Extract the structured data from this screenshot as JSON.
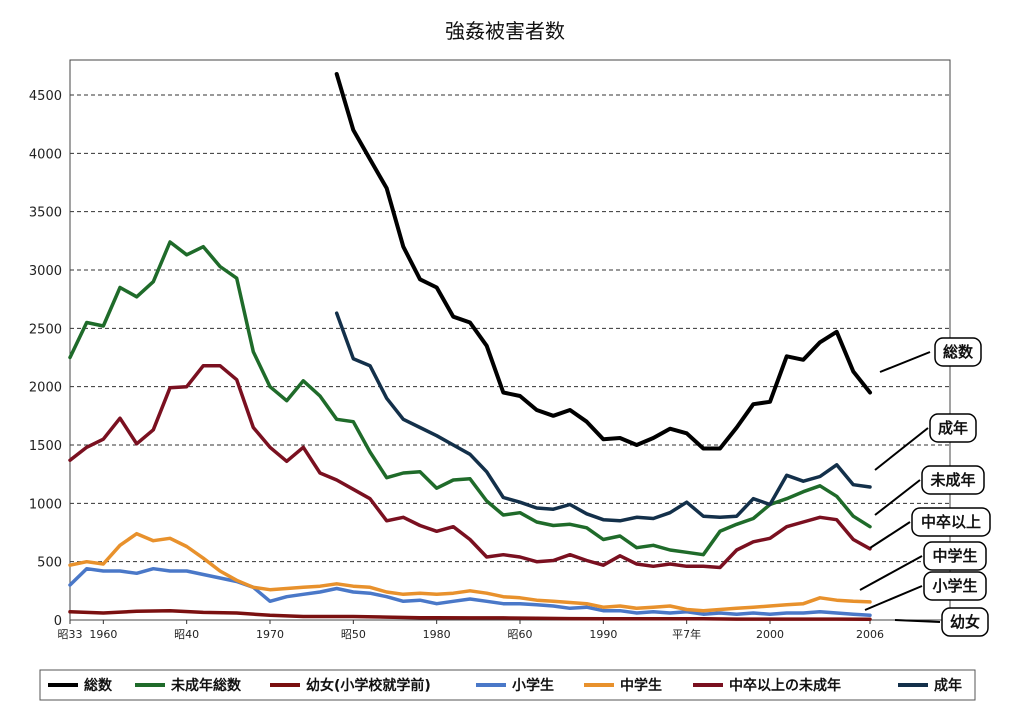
{
  "chart_data": {
    "type": "line",
    "title": "強姦被害者数",
    "xlabel": "",
    "ylabel": "",
    "xlim": [
      1958,
      2006
    ],
    "ylim": [
      0,
      4800
    ],
    "y_ticks": [
      0,
      500,
      1000,
      1500,
      2000,
      2500,
      3000,
      3500,
      4000,
      4500
    ],
    "y_tick_labels": [
      "0",
      "500",
      "1000",
      "1500",
      "2000",
      "2500",
      "3000",
      "3500",
      "4000",
      "4500"
    ],
    "x_ticks": [
      {
        "x": 1958,
        "label": "昭33"
      },
      {
        "x": 1960,
        "label": "1960"
      },
      {
        "x": 1965,
        "label": "昭40"
      },
      {
        "x": 1970,
        "label": "1970"
      },
      {
        "x": 1975,
        "label": "昭50"
      },
      {
        "x": 1980,
        "label": "1980"
      },
      {
        "x": 1985,
        "label": "昭60"
      },
      {
        "x": 1990,
        "label": "1990"
      },
      {
        "x": 1995,
        "label": "平7年"
      },
      {
        "x": 2000,
        "label": "2000"
      },
      {
        "x": 2006,
        "label": "2006"
      }
    ],
    "grid": "horizontal dashed",
    "legend_position": "bottom",
    "series": [
      {
        "name": "総数",
        "color": "#000000",
        "x": [
          1974,
          1975,
          1976,
          1977,
          1978,
          1979,
          1980,
          1981,
          1982,
          1983,
          1984,
          1985,
          1986,
          1987,
          1988,
          1989,
          1990,
          1991,
          1992,
          1993,
          1994,
          1995,
          1996,
          1997,
          1998,
          1999,
          2000,
          2001,
          2002,
          2003,
          2004,
          2005,
          2006
        ],
        "y": [
          4680,
          4200,
          3950,
          3700,
          3200,
          2920,
          2850,
          2600,
          2550,
          2350,
          1950,
          1920,
          1800,
          1750,
          1800,
          1700,
          1550,
          1560,
          1500,
          1560,
          1640,
          1600,
          1470,
          1470,
          1650,
          1850,
          1870,
          2260,
          2230,
          2380,
          2470,
          2130,
          1950
        ]
      },
      {
        "name": "未成年総数",
        "color": "#1f6b2a",
        "x": [
          1958,
          1959,
          1960,
          1961,
          1962,
          1963,
          1964,
          1965,
          1966,
          1967,
          1968,
          1969,
          1970,
          1971,
          1972,
          1973,
          1974,
          1975,
          1976,
          1977,
          1978,
          1979,
          1980,
          1981,
          1982,
          1983,
          1984,
          1985,
          1986,
          1987,
          1988,
          1989,
          1990,
          1991,
          1992,
          1993,
          1994,
          1995,
          1996,
          1997,
          1998,
          1999,
          2000,
          2001,
          2002,
          2003,
          2004,
          2005,
          2006
        ],
        "y": [
          2250,
          2550,
          2520,
          2850,
          2770,
          2900,
          3240,
          3130,
          3200,
          3030,
          2930,
          2300,
          2000,
          1880,
          2050,
          1920,
          1720,
          1700,
          1440,
          1220,
          1260,
          1270,
          1130,
          1200,
          1210,
          1020,
          900,
          920,
          840,
          810,
          820,
          790,
          690,
          720,
          620,
          640,
          600,
          580,
          560,
          760,
          820,
          870,
          990,
          1040,
          1100,
          1150,
          1060,
          890,
          800
        ]
      },
      {
        "name": "幼女(小学校就学前)",
        "color": "#7a1010",
        "x": [
          1958,
          1960,
          1962,
          1964,
          1966,
          1968,
          1970,
          1972,
          1975,
          1977,
          1979,
          1980,
          1982,
          1984,
          1986,
          1988,
          1990,
          1992,
          1994,
          1996,
          1998,
          2000,
          2002,
          2004,
          2006
        ],
        "y": [
          70,
          60,
          75,
          80,
          65,
          60,
          40,
          30,
          30,
          25,
          20,
          20,
          18,
          18,
          15,
          12,
          10,
          10,
          10,
          10,
          8,
          8,
          8,
          8,
          6
        ]
      },
      {
        "name": "小学生",
        "color": "#4a78c8",
        "x": [
          1958,
          1959,
          1960,
          1961,
          1962,
          1963,
          1964,
          1965,
          1966,
          1967,
          1968,
          1969,
          1970,
          1971,
          1972,
          1973,
          1974,
          1975,
          1976,
          1977,
          1978,
          1979,
          1980,
          1981,
          1982,
          1983,
          1984,
          1985,
          1986,
          1987,
          1988,
          1989,
          1990,
          1991,
          1992,
          1993,
          1994,
          1995,
          1996,
          1997,
          1998,
          1999,
          2000,
          2001,
          2002,
          2003,
          2004,
          2005,
          2006
        ],
        "y": [
          300,
          440,
          420,
          420,
          400,
          440,
          420,
          420,
          390,
          360,
          330,
          280,
          160,
          200,
          220,
          240,
          270,
          240,
          230,
          200,
          160,
          170,
          140,
          160,
          180,
          160,
          140,
          140,
          130,
          120,
          100,
          110,
          80,
          80,
          60,
          70,
          60,
          70,
          50,
          60,
          50,
          60,
          50,
          60,
          60,
          70,
          60,
          50,
          40
        ]
      },
      {
        "name": "中学生",
        "color": "#e8912c",
        "x": [
          1958,
          1959,
          1960,
          1961,
          1962,
          1963,
          1964,
          1965,
          1966,
          1967,
          1968,
          1969,
          1970,
          1971,
          1972,
          1973,
          1974,
          1975,
          1976,
          1977,
          1978,
          1979,
          1980,
          1981,
          1982,
          1983,
          1984,
          1985,
          1986,
          1987,
          1988,
          1989,
          1990,
          1991,
          1992,
          1993,
          1994,
          1995,
          1996,
          1997,
          1998,
          1999,
          2000,
          2001,
          2002,
          2003,
          2004,
          2005,
          2006
        ],
        "y": [
          470,
          500,
          480,
          640,
          740,
          680,
          700,
          630,
          530,
          420,
          340,
          280,
          260,
          270,
          280,
          290,
          310,
          290,
          280,
          240,
          220,
          230,
          220,
          230,
          250,
          230,
          200,
          190,
          170,
          160,
          150,
          140,
          110,
          120,
          100,
          110,
          120,
          90,
          80,
          90,
          100,
          110,
          120,
          130,
          140,
          190,
          170,
          160,
          155
        ]
      },
      {
        "name": "中卒以上の未成年",
        "color": "#7a1020",
        "x": [
          1958,
          1959,
          1960,
          1961,
          1962,
          1963,
          1964,
          1965,
          1966,
          1967,
          1968,
          1969,
          1970,
          1971,
          1972,
          1973,
          1974,
          1975,
          1976,
          1977,
          1978,
          1979,
          1980,
          1981,
          1982,
          1983,
          1984,
          1985,
          1986,
          1987,
          1988,
          1989,
          1990,
          1991,
          1992,
          1993,
          1994,
          1995,
          1996,
          1997,
          1998,
          1999,
          2000,
          2001,
          2002,
          2003,
          2004,
          2005,
          2006
        ],
        "y": [
          1370,
          1480,
          1550,
          1730,
          1510,
          1630,
          1990,
          2000,
          2180,
          2180,
          2060,
          1650,
          1480,
          1360,
          1480,
          1260,
          1200,
          1120,
          1040,
          850,
          880,
          810,
          760,
          800,
          690,
          540,
          560,
          540,
          500,
          510,
          560,
          510,
          470,
          550,
          480,
          460,
          480,
          460,
          460,
          450,
          600,
          670,
          700,
          800,
          840,
          880,
          860,
          690,
          610
        ]
      },
      {
        "name": "成年",
        "color": "#13304a",
        "x": [
          1974,
          1975,
          1976,
          1977,
          1978,
          1979,
          1980,
          1981,
          1982,
          1983,
          1984,
          1985,
          1986,
          1987,
          1988,
          1989,
          1990,
          1991,
          1992,
          1993,
          1994,
          1995,
          1996,
          1997,
          1998,
          1999,
          2000,
          2001,
          2002,
          2003,
          2004,
          2005,
          2006
        ],
        "y": [
          2630,
          2240,
          2180,
          1900,
          1720,
          1650,
          1580,
          1500,
          1420,
          1270,
          1050,
          1010,
          960,
          950,
          990,
          910,
          860,
          850,
          880,
          870,
          920,
          1010,
          890,
          880,
          890,
          1040,
          990,
          1240,
          1190,
          1230,
          1330,
          1160,
          1140
        ]
      }
    ],
    "callouts": [
      "総数",
      "成年",
      "未成年",
      "中卒以上",
      "中学生",
      "小学生",
      "幼女"
    ]
  }
}
